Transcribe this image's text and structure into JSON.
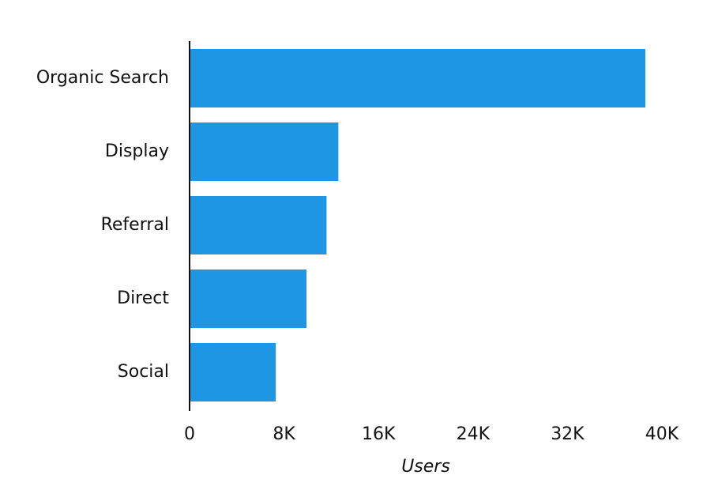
{
  "chart_data": {
    "type": "bar",
    "orientation": "horizontal",
    "categories": [
      "Organic Search",
      "Display",
      "Referral",
      "Direct",
      "Social"
    ],
    "values": [
      38600,
      12600,
      11600,
      9900,
      7300
    ],
    "xlabel": "Users",
    "ylabel": "",
    "xlim": [
      0,
      40000
    ],
    "xticks": [
      0,
      8000,
      16000,
      24000,
      32000,
      40000
    ],
    "xtick_labels": [
      "0",
      "8K",
      "16K",
      "24K",
      "32K",
      "40K"
    ],
    "grid": false,
    "bar_color": "#1e96e4",
    "axis_color": "#111111"
  }
}
